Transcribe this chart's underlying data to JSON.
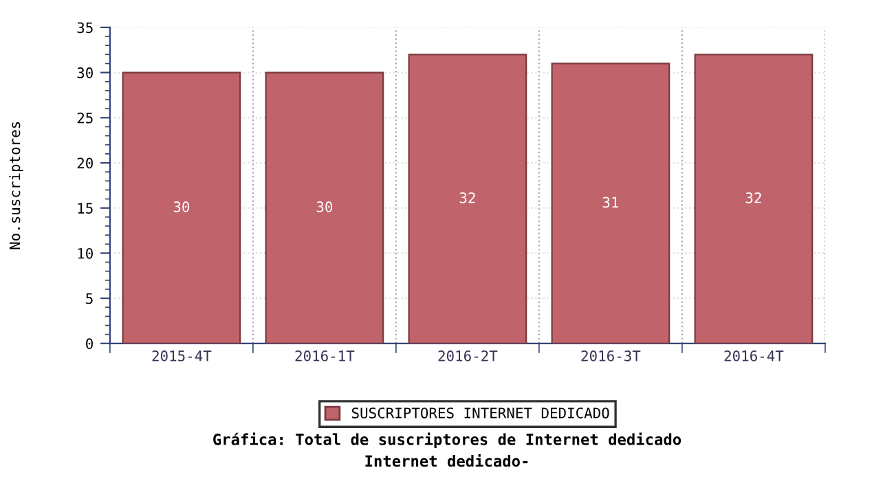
{
  "chart_data": {
    "type": "bar",
    "title": "Gráfica: Total de suscriptores de Internet dedicado",
    "subtitle": "Internet dedicado-",
    "ylabel": "No.suscriptores",
    "categories": [
      "2015-4T",
      "2016-1T",
      "2016-2T",
      "2016-3T",
      "2016-4T"
    ],
    "series": [
      {
        "name": "SUSCRIPTORES INTERNET DEDICADO",
        "color": "#c0636b",
        "values": [
          30,
          30,
          32,
          31,
          32
        ]
      }
    ],
    "ylim": [
      0,
      35
    ],
    "yticks": [
      0,
      5,
      10,
      15,
      20,
      25,
      30,
      35
    ],
    "grid": true,
    "legend": "bottom",
    "data_labels": true
  }
}
